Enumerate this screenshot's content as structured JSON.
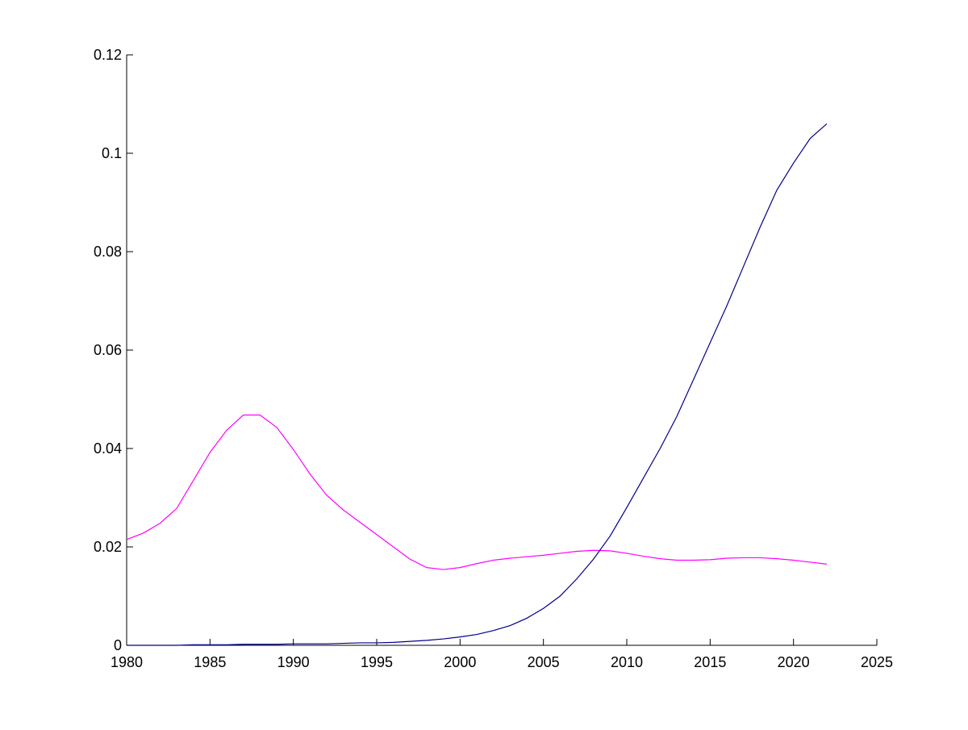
{
  "chart_data": {
    "type": "line",
    "title": "",
    "xlabel": "",
    "ylabel": "",
    "xlim": [
      1980,
      2025
    ],
    "ylim": [
      0,
      0.12
    ],
    "grid": false,
    "x_ticks": [
      1980,
      1985,
      1990,
      1995,
      2000,
      2005,
      2010,
      2015,
      2020,
      2025
    ],
    "x_tick_labels": [
      "1980",
      "1985",
      "1990",
      "1995",
      "2000",
      "2005",
      "2010",
      "2015",
      "2020",
      "2025"
    ],
    "y_ticks": [
      0,
      0.02,
      0.04,
      0.06,
      0.08,
      0.1,
      0.12
    ],
    "y_tick_labels": [
      "0",
      "0.02",
      "0.04",
      "0.06",
      "0.08",
      "0.1",
      "0.12"
    ],
    "x": [
      1980,
      1981,
      1982,
      1983,
      1984,
      1985,
      1986,
      1987,
      1988,
      1989,
      1990,
      1991,
      1992,
      1993,
      1994,
      1995,
      1996,
      1997,
      1998,
      1999,
      2000,
      2001,
      2002,
      2003,
      2004,
      2005,
      2006,
      2007,
      2008,
      2009,
      2010,
      2011,
      2012,
      2013,
      2014,
      2015,
      2016,
      2017,
      2018,
      2019,
      2020,
      2021,
      2022
    ],
    "series": [
      {
        "color": "#ff00ff",
        "values": [
          0.0215,
          0.0228,
          0.0248,
          0.0278,
          0.0335,
          0.0392,
          0.0437,
          0.0468,
          0.0468,
          0.0443,
          0.0398,
          0.0348,
          0.0305,
          0.0275,
          0.025,
          0.0225,
          0.02,
          0.0175,
          0.0158,
          0.0154,
          0.0158,
          0.0166,
          0.0173,
          0.0177,
          0.018,
          0.0183,
          0.0187,
          0.0191,
          0.0193,
          0.0192,
          0.0187,
          0.0181,
          0.0176,
          0.0173,
          0.0173,
          0.0174,
          0.0177,
          0.0178,
          0.0178,
          0.0176,
          0.0173,
          0.0169,
          0.0165
        ]
      },
      {
        "color": "#00008b",
        "values": [
          0.0,
          0.0,
          0.0,
          0.0,
          0.0001,
          0.0001,
          0.0001,
          0.0002,
          0.0002,
          0.0002,
          0.0003,
          0.0003,
          0.0003,
          0.0004,
          0.0005,
          0.0005,
          0.0006,
          0.0008,
          0.001,
          0.0013,
          0.0017,
          0.0022,
          0.003,
          0.004,
          0.0055,
          0.0075,
          0.01,
          0.0135,
          0.0175,
          0.0222,
          0.028,
          0.034,
          0.04,
          0.0465,
          0.054,
          0.0615,
          0.069,
          0.077,
          0.085,
          0.0925,
          0.098,
          0.103,
          0.106
        ]
      }
    ]
  }
}
